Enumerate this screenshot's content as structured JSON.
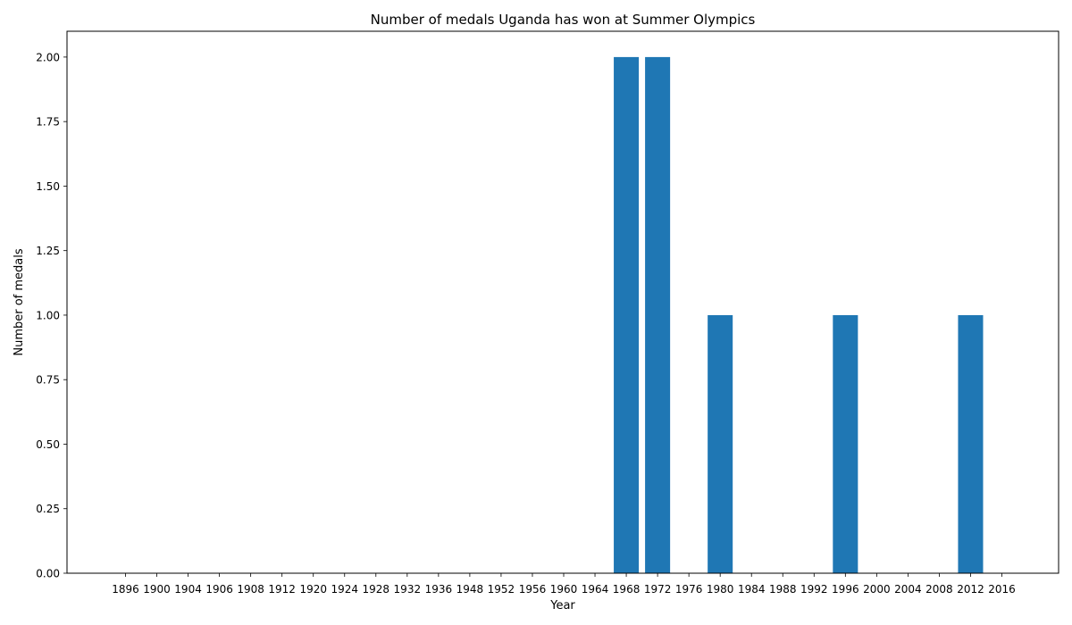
{
  "chart_data": {
    "type": "bar",
    "title": "Number of medals Uganda has won at Summer Olympics",
    "xlabel": "Year",
    "ylabel": "Number of medals",
    "categories": [
      "1896",
      "1900",
      "1904",
      "1906",
      "1908",
      "1912",
      "1920",
      "1924",
      "1928",
      "1932",
      "1936",
      "1948",
      "1952",
      "1956",
      "1960",
      "1964",
      "1968",
      "1972",
      "1976",
      "1980",
      "1984",
      "1988",
      "1992",
      "1996",
      "2000",
      "2004",
      "2008",
      "2012",
      "2016"
    ],
    "values": [
      0,
      0,
      0,
      0,
      0,
      0,
      0,
      0,
      0,
      0,
      0,
      0,
      0,
      0,
      0,
      0,
      2,
      2,
      0,
      1,
      0,
      0,
      0,
      1,
      0,
      0,
      0,
      1,
      0
    ],
    "ylim": [
      0,
      2.1
    ],
    "yticks": [
      "0.00",
      "0.25",
      "0.50",
      "0.75",
      "1.00",
      "1.25",
      "1.50",
      "1.75",
      "2.00"
    ],
    "grid": false,
    "legend": "none",
    "bar_color": "#1f77b4"
  }
}
